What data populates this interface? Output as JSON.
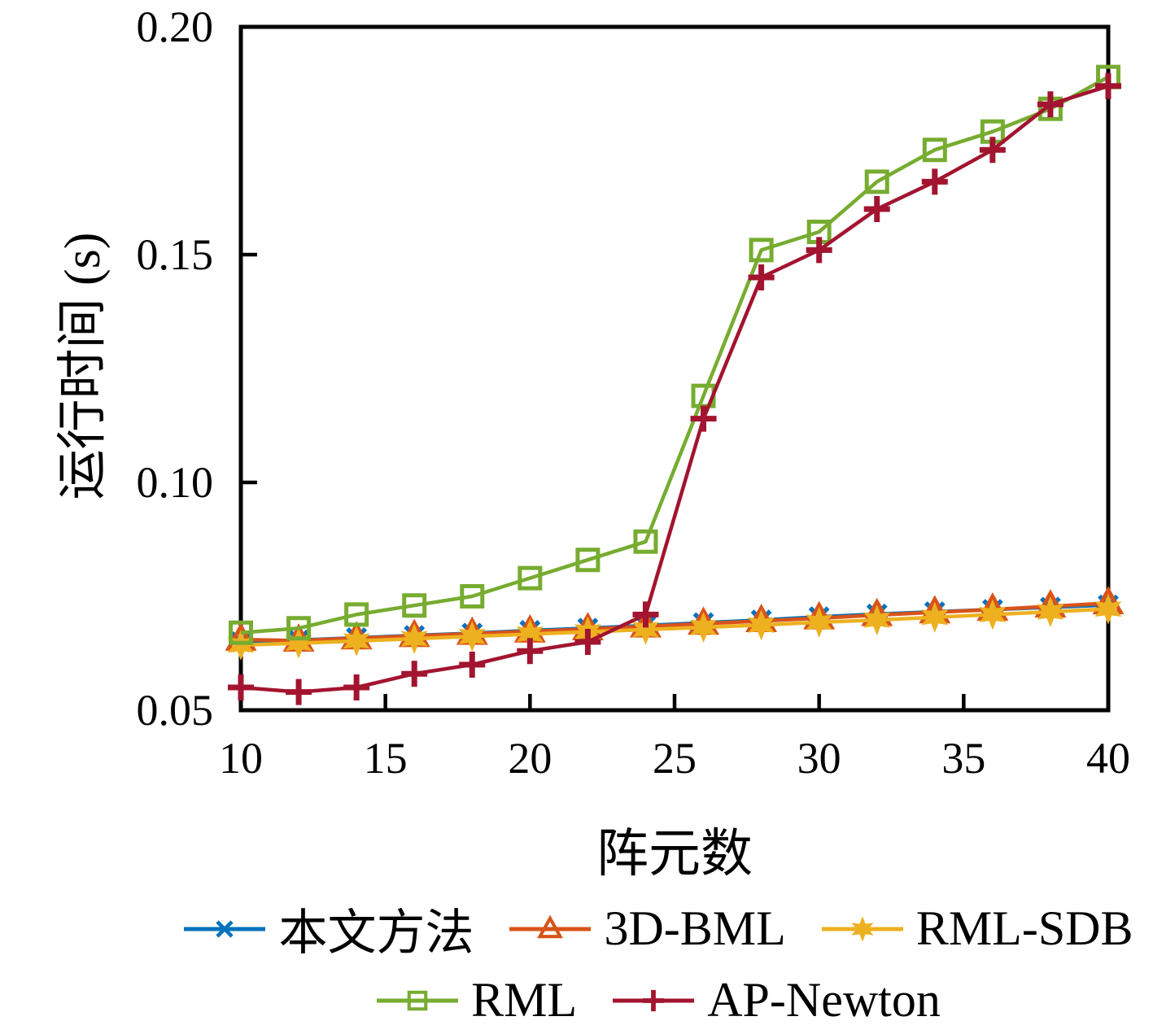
{
  "figure": {
    "background": "#ffffff",
    "axis_color": "#000000"
  },
  "chart_data": {
    "type": "line",
    "title": "",
    "xlabel": "阵元数",
    "ylabel": "运行时间 (s)",
    "xlim": [
      10,
      40
    ],
    "ylim": [
      0.05,
      0.2
    ],
    "xticks": [
      "10",
      "15",
      "20",
      "25",
      "30",
      "35",
      "40"
    ],
    "yticks": [
      "0.05",
      "0.10",
      "0.15",
      "0.20"
    ],
    "grid": false,
    "legend_position": "bottom",
    "x": [
      10,
      12,
      14,
      16,
      18,
      20,
      22,
      24,
      26,
      28,
      30,
      32,
      34,
      36,
      38,
      40
    ],
    "series": [
      {
        "name": "本文方法",
        "color": "#0072BD",
        "marker": "x",
        "values": [
          0.065,
          0.0654,
          0.0659,
          0.0664,
          0.0669,
          0.0675,
          0.068,
          0.0686,
          0.0692,
          0.0698,
          0.0705,
          0.0711,
          0.0716,
          0.0721,
          0.0726,
          0.0731
        ]
      },
      {
        "name": "3D-BML",
        "color": "#D95319",
        "marker": "triangle",
        "values": [
          0.0655,
          0.0653,
          0.0658,
          0.0663,
          0.0668,
          0.0673,
          0.0678,
          0.0684,
          0.069,
          0.0696,
          0.0702,
          0.0709,
          0.0715,
          0.0721,
          0.0728,
          0.0735
        ]
      },
      {
        "name": "RML-SDB",
        "color": "#EDB120",
        "marker": "hexagram",
        "values": [
          0.0643,
          0.0647,
          0.0652,
          0.0657,
          0.0662,
          0.0667,
          0.0672,
          0.0677,
          0.0682,
          0.0687,
          0.0693,
          0.0698,
          0.0704,
          0.071,
          0.0716,
          0.0722
        ]
      },
      {
        "name": "RML",
        "color": "#77AC30",
        "marker": "square",
        "values": [
          0.067,
          0.068,
          0.071,
          0.073,
          0.075,
          0.079,
          0.083,
          0.087,
          0.119,
          0.151,
          0.155,
          0.166,
          0.173,
          0.177,
          0.182,
          0.189
        ]
      },
      {
        "name": "AP-Newton",
        "color": "#A2142F",
        "marker": "plus",
        "values": [
          0.055,
          0.054,
          0.055,
          0.058,
          0.06,
          0.063,
          0.065,
          0.071,
          0.114,
          0.145,
          0.151,
          0.16,
          0.166,
          0.173,
          0.183,
          0.187
        ]
      }
    ],
    "legend_rows": [
      3,
      2
    ]
  }
}
